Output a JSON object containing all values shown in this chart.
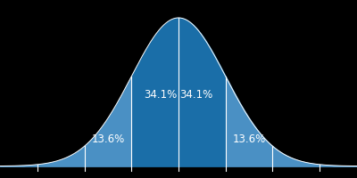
{
  "background_color": "#000000",
  "curve_fill_light": "#4a90c4",
  "curve_fill_dark": "#1a6ea8",
  "line_color": "#ffffff",
  "text_color": "#ffffff",
  "mu": 0,
  "sigma": 1,
  "x_min": -3.8,
  "x_max": 3.8,
  "label_34_1": "34.1%",
  "label_13_6": "13.6%",
  "font_size_pct": 8.5,
  "vline_positions": [
    -3,
    -2,
    -1,
    0,
    1,
    2,
    3
  ]
}
